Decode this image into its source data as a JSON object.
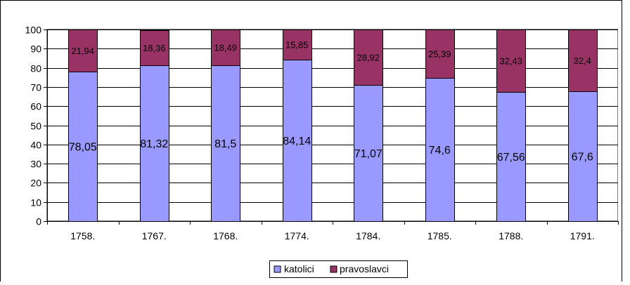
{
  "chart_data": {
    "type": "bar",
    "stacked": true,
    "categories": [
      "1758.",
      "1767.",
      "1768.",
      "1774.",
      "1784.",
      "1785.",
      "1788.",
      "1791."
    ],
    "series": [
      {
        "name": "katolici",
        "color": "#9999ff",
        "values": [
          78.05,
          81.32,
          81.5,
          84.14,
          71.07,
          74.6,
          67.56,
          67.6
        ],
        "labels": [
          "78,05",
          "81,32",
          "81,5",
          "84,14",
          "71,07",
          "74,6",
          "67,56",
          "67,6"
        ]
      },
      {
        "name": "pravoslavci",
        "color": "#993366",
        "values": [
          21.94,
          18.36,
          18.49,
          15.85,
          28.92,
          25.39,
          32.43,
          32.4
        ],
        "labels": [
          "21,94",
          "18,36",
          "18,49",
          "15,85",
          "28,92",
          "25,39",
          "32,43",
          "32,4"
        ]
      }
    ],
    "ylim": [
      0,
      100
    ],
    "yticks": [
      0,
      10,
      20,
      30,
      40,
      50,
      60,
      70,
      80,
      90,
      100
    ],
    "grid": true,
    "legend_position": "bottom",
    "title": "",
    "xlabel": "",
    "ylabel": ""
  }
}
